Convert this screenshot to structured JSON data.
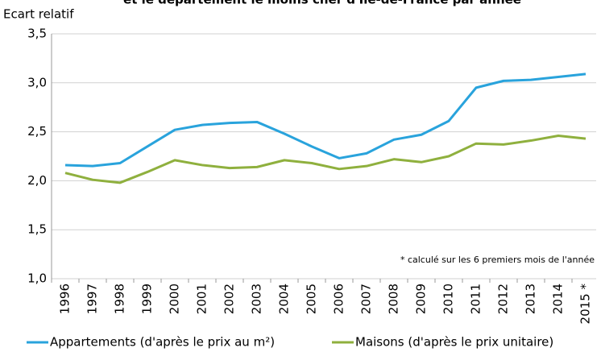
{
  "chart_data": {
    "type": "line",
    "title": "et le département le moins cher d'Ile-de-France par année",
    "y_label": "Ecart relatif",
    "annotation": "* calculé sur les 6 premiers mois  de l'année",
    "categories": [
      "1996",
      "1997",
      "1998",
      "1999",
      "2000",
      "2001",
      "2002",
      "2003",
      "2004",
      "2005",
      "2006",
      "2007",
      "2008",
      "2009",
      "2010",
      "2011",
      "2012",
      "2013",
      "2014",
      "2015 *"
    ],
    "series": [
      {
        "name": "Appartements (d'après le prix au m²)",
        "color": "#29a3dc",
        "values": [
          2.16,
          2.15,
          2.18,
          2.35,
          2.52,
          2.57,
          2.59,
          2.6,
          2.48,
          2.35,
          2.23,
          2.28,
          2.42,
          2.47,
          2.61,
          2.95,
          3.02,
          3.03,
          3.06,
          3.09
        ]
      },
      {
        "name": "Maisons (d'après le prix unitaire)",
        "color": "#8fb03e",
        "values": [
          2.08,
          2.01,
          1.98,
          2.09,
          2.21,
          2.16,
          2.13,
          2.14,
          2.21,
          2.18,
          2.12,
          2.15,
          2.22,
          2.19,
          2.25,
          2.38,
          2.37,
          2.41,
          2.46,
          2.43
        ]
      }
    ],
    "ylim": [
      1.0,
      3.5
    ],
    "yticks": [
      {
        "value": 1.0,
        "label": "1,0"
      },
      {
        "value": 1.5,
        "label": "1,5"
      },
      {
        "value": 2.0,
        "label": "2,0"
      },
      {
        "value": 2.5,
        "label": "2,5"
      },
      {
        "value": 3.0,
        "label": "3,0"
      },
      {
        "value": 3.5,
        "label": "3,5"
      }
    ],
    "grid": true,
    "legend": "bottom"
  }
}
